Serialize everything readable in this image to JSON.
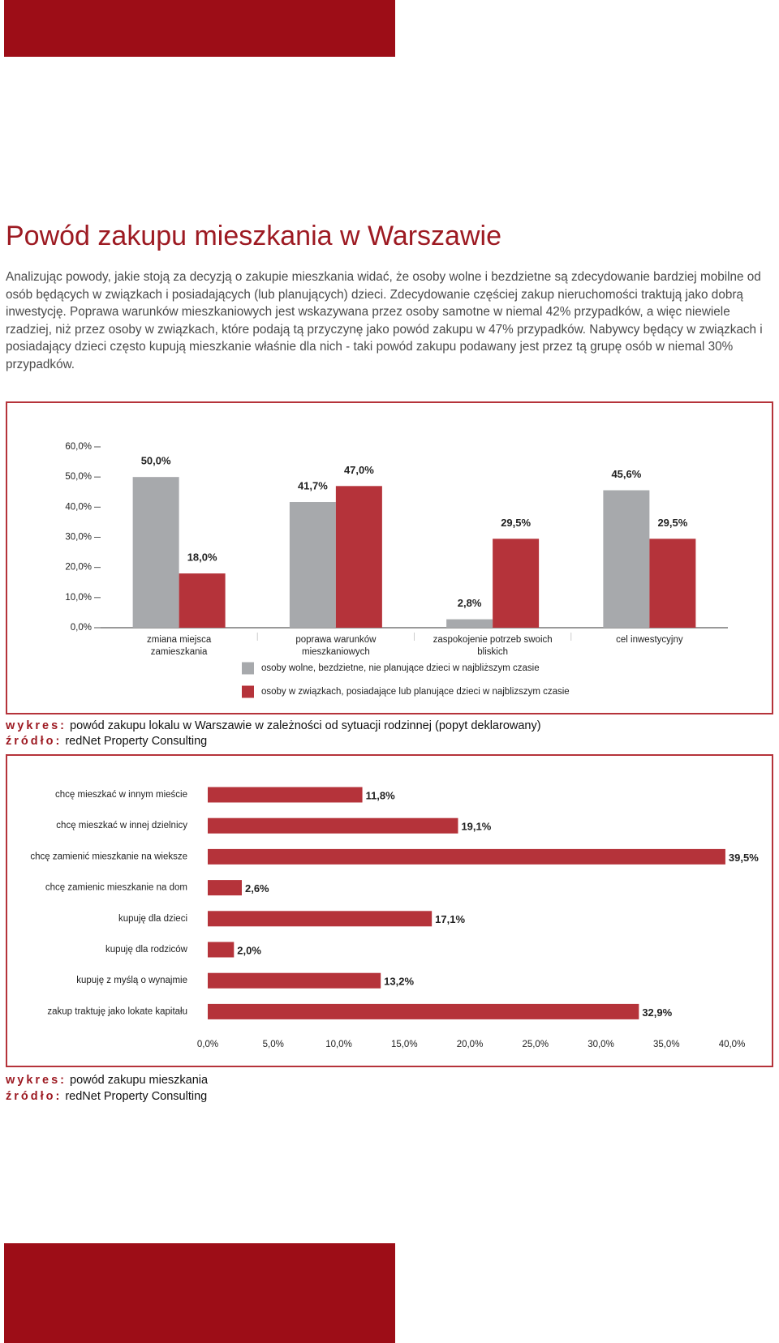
{
  "title": "Powód zakupu mieszkania w Warszawie",
  "paragraph": "Analizując powody, jakie stoją za decyzją o zakupie mieszkania widać, że osoby wolne i bezdzietne są zdecydowanie bardziej mobilne od osób będących w związkach i posiadających (lub planujących) dzieci. Zdecydowanie częściej zakup nieruchomości traktują jako dobrą inwestycję. Poprawa warunków mieszkaniowych jest wskazywana przez osoby samotne w niemal 42% przypadków, a więc niewiele rzadziej, niż przez osoby w związkach, które podają tą przyczynę jako powód zakupu w 47% przypadków. Nabywcy będący w związkach i posiadający dzieci często kupują mieszkanie  właśnie dla nich - taki powód zakupu podawany jest przez tą grupę osób w niemal 30% przypadków.",
  "caption_label": "wykres:",
  "source_label": "źródło:",
  "chart_data": [
    {
      "type": "bar",
      "categories": [
        "zmiana miejsca zamieszkania",
        "poprawa warunków mieszkaniowych",
        "zaspokojenie potrzeb swoich bliskich",
        "cel inwestycyjny"
      ],
      "series": [
        {
          "name": "osoby wolne, bezdzietne, nie planujące dzieci w najbliższym czasie",
          "color": "#a7a9ac",
          "values": [
            50.0,
            41.7,
            2.8,
            45.6
          ],
          "value_labels": [
            "50,0%",
            "41,7%",
            "2,8%",
            "45,6%"
          ]
        },
        {
          "name": "osoby w związkach, posiadające lub planujące dzieci w najblizszym czasie",
          "color": "#b5333a",
          "values": [
            18.0,
            47.0,
            29.5,
            29.5
          ],
          "value_labels": [
            "18,0%",
            "47,0%",
            "29,5%",
            "29,5%"
          ]
        }
      ],
      "ylim": [
        0,
        60
      ],
      "yticks": [
        {
          "value": 0,
          "label": "0,0%"
        },
        {
          "value": 10,
          "label": "10,0%"
        },
        {
          "value": 20,
          "label": "20,0%"
        },
        {
          "value": 30,
          "label": "30,0%"
        },
        {
          "value": 40,
          "label": "40,0%"
        },
        {
          "value": 50,
          "label": "50,0%"
        },
        {
          "value": 60,
          "label": "60,0%"
        }
      ],
      "caption": "powód zakupu lokalu w Warszawie w zależności od sytuacji rodzinnej (popyt deklarowany)",
      "source": "redNet Property Consulting"
    },
    {
      "type": "barh",
      "categories": [
        "chcę mieszkać w innym mieście",
        "chcę mieszkać w innej dzielnicy",
        "chcę zamienić mieszkanie  na wieksze",
        "chcę zamienic mieszkanie  na dom",
        "kupuję dla dzieci",
        "kupuję dla rodziców",
        "kupuję z myślą o wynajmie",
        "zakup traktuję jako lokate kapitału"
      ],
      "values": [
        11.8,
        19.1,
        39.5,
        2.6,
        17.1,
        2.0,
        13.2,
        32.9
      ],
      "value_labels": [
        "11,8%",
        "19,1%",
        "39,5%",
        "2,6%",
        "17,1%",
        "2,0%",
        "13,2%",
        "32,9%"
      ],
      "color": "#b5333a",
      "xlim": [
        0,
        40
      ],
      "xticks": [
        {
          "value": 0,
          "label": "0,0%"
        },
        {
          "value": 5,
          "label": "5,0%"
        },
        {
          "value": 10,
          "label": "10,0%"
        },
        {
          "value": 15,
          "label": "15,0%"
        },
        {
          "value": 20,
          "label": "20,0%"
        },
        {
          "value": 25,
          "label": "25,0%"
        },
        {
          "value": 30,
          "label": "30,0%"
        },
        {
          "value": 35,
          "label": "35,0%"
        },
        {
          "value": 40,
          "label": "40,0%"
        }
      ],
      "caption": "powód zakupu mieszkania",
      "source": "redNet Property Consulting"
    }
  ]
}
